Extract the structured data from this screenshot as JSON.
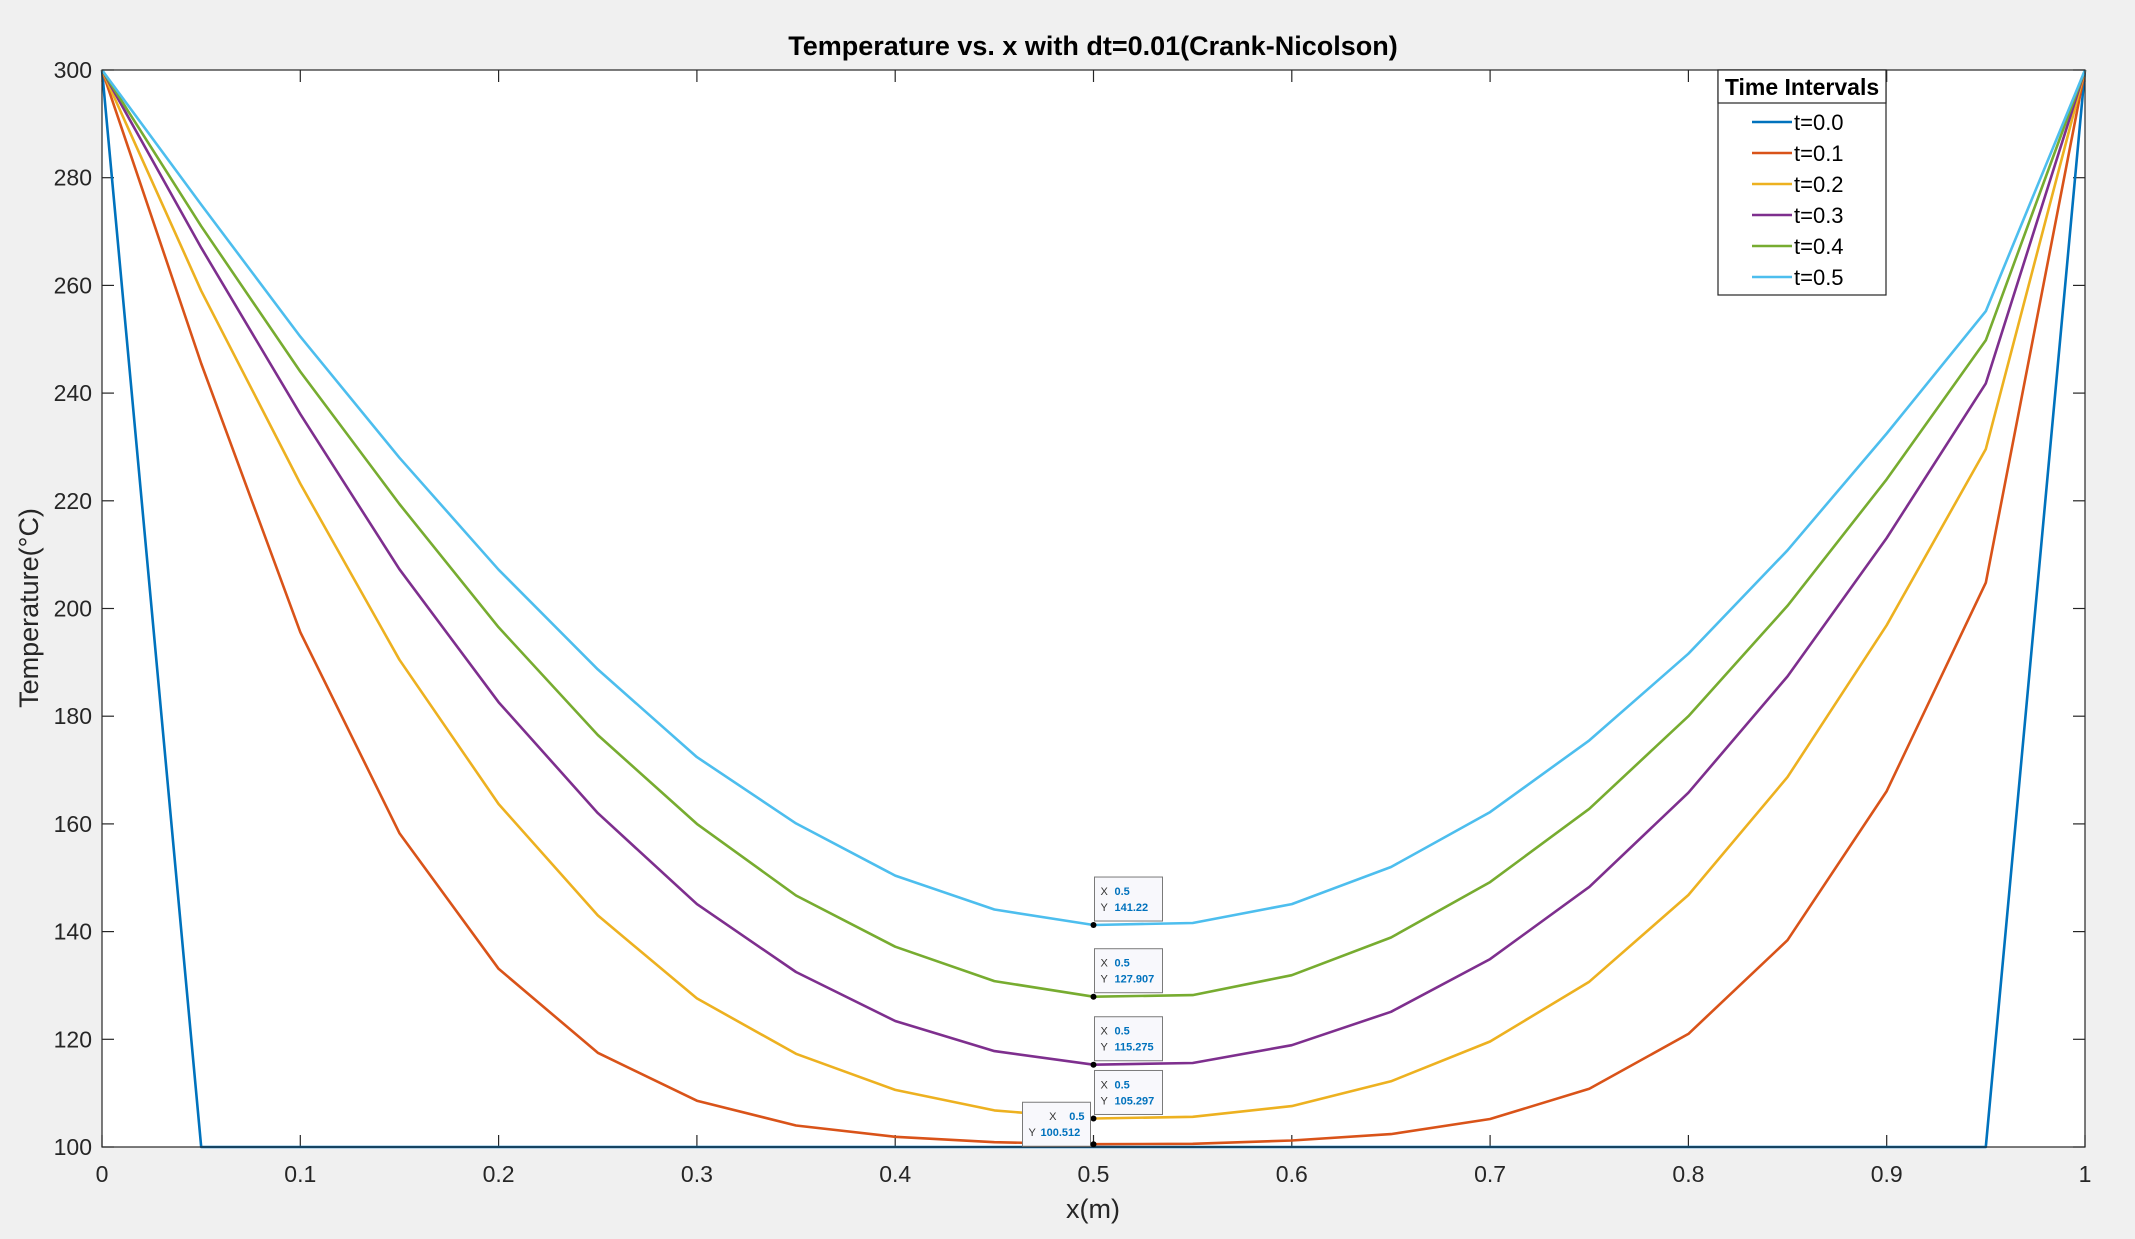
{
  "chart_data": {
    "type": "line",
    "title": "Temperature vs. x with dt=0.01(Crank-Nicolson)",
    "xlabel": "x(m)",
    "ylabel": "Temperature(°C)",
    "xlim": [
      0,
      1
    ],
    "ylim": [
      100,
      300
    ],
    "xticks": [
      0,
      0.1,
      0.2,
      0.3,
      0.4,
      0.5,
      0.6,
      0.7,
      0.8,
      0.9,
      1
    ],
    "xtick_labels": [
      "0",
      "0.1",
      "0.2",
      "0.3",
      "0.4",
      "0.5",
      "0.6",
      "0.7",
      "0.8",
      "0.9",
      "1"
    ],
    "yticks": [
      100,
      120,
      140,
      160,
      180,
      200,
      220,
      240,
      260,
      280,
      300
    ],
    "ytick_labels": [
      "100",
      "120",
      "140",
      "160",
      "180",
      "200",
      "220",
      "240",
      "260",
      "280",
      "300"
    ],
    "grid": false,
    "x": [
      0,
      0.05,
      0.1,
      0.15,
      0.2,
      0.25,
      0.3,
      0.35,
      0.4,
      0.45,
      0.5,
      0.55,
      0.6,
      0.65,
      0.7,
      0.75,
      0.8,
      0.85,
      0.9,
      0.95,
      1
    ],
    "legend": {
      "title": "Time Intervals",
      "placement": "top-right"
    },
    "series": [
      {
        "name": "t=0.0",
        "color": "#0072bd",
        "values": [
          300,
          100,
          100,
          100,
          100,
          100,
          100,
          100,
          100,
          100,
          100,
          100,
          100,
          100,
          100,
          100,
          100,
          100,
          100,
          100,
          300
        ]
      },
      {
        "name": "t=0.1",
        "color": "#d95319",
        "values": [
          300,
          245.5,
          195.6,
          158.3,
          133.1,
          117.5,
          108.6,
          104.0,
          101.9,
          100.9,
          100.512,
          100.6,
          101.2,
          102.4,
          105.2,
          110.8,
          121.0,
          138.4,
          166.1,
          204.8,
          300
        ]
      },
      {
        "name": "t=0.2",
        "color": "#edb120",
        "values": [
          300,
          259.0,
          223.2,
          190.5,
          163.7,
          143.0,
          127.6,
          117.3,
          110.6,
          106.8,
          105.297,
          105.6,
          107.6,
          112.2,
          119.6,
          130.7,
          146.8,
          168.7,
          196.9,
          229.6,
          300
        ]
      },
      {
        "name": "t=0.3",
        "color": "#7e2f8e",
        "values": [
          300,
          267.0,
          236.1,
          207.3,
          182.6,
          162.0,
          145.1,
          132.5,
          123.4,
          117.8,
          115.275,
          115.6,
          118.9,
          125.1,
          134.9,
          148.3,
          165.8,
          187.4,
          213.1,
          241.8,
          300
        ]
      },
      {
        "name": "t=0.4",
        "color": "#77ac30",
        "values": [
          300,
          271.0,
          244.0,
          219.4,
          196.5,
          176.5,
          160.0,
          146.7,
          137.2,
          130.8,
          127.907,
          128.2,
          131.9,
          138.9,
          149.2,
          162.8,
          180.0,
          200.5,
          224.0,
          249.8,
          300
        ]
      },
      {
        "name": "t=0.5",
        "color": "#4dbeee",
        "values": [
          300,
          275.0,
          250.5,
          228.0,
          207.2,
          188.7,
          172.4,
          160.1,
          150.4,
          144.1,
          141.22,
          141.6,
          145.1,
          152.0,
          162.2,
          175.5,
          191.6,
          210.8,
          232.5,
          255.2,
          300
        ]
      }
    ],
    "datatips": [
      {
        "series": "t=0.5",
        "x": 0.5,
        "y": 141.22,
        "x_text": "0.5",
        "y_text": "141.22",
        "side": "right"
      },
      {
        "series": "t=0.4",
        "x": 0.5,
        "y": 127.907,
        "x_text": "0.5",
        "y_text": "127.907",
        "side": "right"
      },
      {
        "series": "t=0.3",
        "x": 0.5,
        "y": 115.275,
        "x_text": "0.5",
        "y_text": "115.275",
        "side": "right"
      },
      {
        "series": "t=0.2",
        "x": 0.5,
        "y": 105.297,
        "x_text": "0.5",
        "y_text": "105.297",
        "side": "right"
      },
      {
        "series": "t=0.1",
        "x": 0.5,
        "y": 100.512,
        "x_text": "0.5",
        "y_text": "100.512",
        "side": "left"
      }
    ]
  }
}
